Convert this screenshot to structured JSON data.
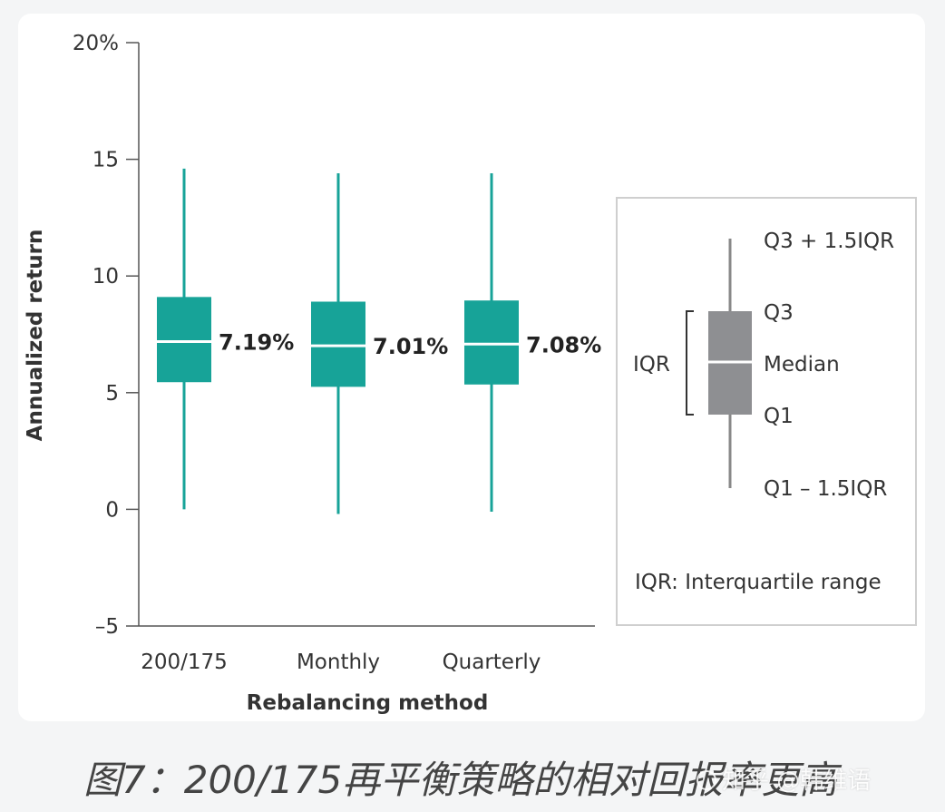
{
  "chart_data": {
    "type": "boxplot",
    "xlabel": "Rebalancing method",
    "ylabel": "Annualized return",
    "ylim": [
      -5,
      20
    ],
    "yticks": [
      -5,
      0,
      5,
      10,
      15,
      20
    ],
    "ytick_labels": [
      "–5",
      "0",
      "5",
      "10",
      "15",
      "20%"
    ],
    "categories": [
      "200/175",
      "Monthly",
      "Quarterly"
    ],
    "boxes": [
      {
        "category": "200/175",
        "whisker_low": 0,
        "q1": 5.45,
        "median": 7.19,
        "q3": 9.1,
        "whisker_high": 14.6,
        "label": "7.19%"
      },
      {
        "category": "Monthly",
        "whisker_low": -0.2,
        "q1": 5.25,
        "median": 7.01,
        "q3": 8.9,
        "whisker_high": 14.4,
        "label": "7.01%"
      },
      {
        "category": "Quarterly",
        "whisker_low": -0.1,
        "q1": 5.35,
        "median": 7.08,
        "q3": 8.95,
        "whisker_high": 14.4,
        "label": "7.08%"
      }
    ],
    "box_color": "#17a398",
    "median_color": "#ffffff",
    "legend": {
      "placement": "right",
      "box_color": "#8e8f92",
      "labels": {
        "upper": "Q3 + 1.5IQR",
        "q3": "Q3",
        "median": "Median",
        "q1": "Q1",
        "lower": "Q1 – 1.5IQR",
        "iqr": "IQR",
        "note": "IQR: Interquartile range"
      }
    }
  },
  "caption": "图7：200/175再平衡策略的相对回报率更高",
  "watermark": "知乎 @韩维语"
}
